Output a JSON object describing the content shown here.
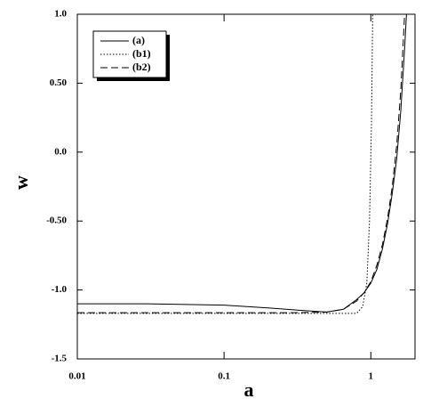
{
  "chart_data": {
    "type": "line",
    "x_label": "a",
    "y_label": "w",
    "log_x": true,
    "xlim": [
      0.01,
      2
    ],
    "xticks": [
      0.01,
      0.1,
      1
    ],
    "ylim": [
      -1.5,
      1.0
    ],
    "yticks": [
      {
        "value": -1.5,
        "label": "-1.5"
      },
      {
        "value": -1.0,
        "label": "-1.0"
      },
      {
        "value": -0.5,
        "label": "-0.50"
      },
      {
        "value": 0,
        "label": "0.0"
      },
      {
        "value": 0.5,
        "label": "0.50"
      },
      {
        "value": 1.0,
        "label": "1.0"
      }
    ],
    "legend": "upper left",
    "series": [
      {
        "name": "(a)",
        "color": "#000000",
        "dash": "solid",
        "x": [
          0.01,
          0.03,
          0.1,
          0.2,
          0.35,
          0.5,
          0.65,
          0.8,
          0.9,
          1.0,
          1.1,
          1.2,
          1.3,
          1.4,
          1.5,
          1.6,
          1.7,
          1.75
        ],
        "values": [
          -1.1,
          -1.1,
          -1.11,
          -1.13,
          -1.15,
          -1.16,
          -1.14,
          -1.07,
          -1.02,
          -0.95,
          -0.85,
          -0.7,
          -0.52,
          -0.3,
          -0.05,
          0.3,
          0.75,
          1.0
        ]
      },
      {
        "name": "(b1)",
        "color": "#000000",
        "dash": "dotted",
        "x": [
          0.01,
          0.1,
          0.5,
          0.8,
          0.88,
          0.94,
          0.98,
          1.01,
          1.03
        ],
        "values": [
          -1.17,
          -1.17,
          -1.17,
          -1.17,
          -1.12,
          -0.95,
          -0.5,
          0.2,
          1.0
        ]
      },
      {
        "name": "(b2)",
        "color": "#000000",
        "dash": "dashed",
        "x": [
          0.01,
          0.1,
          0.3,
          0.5,
          0.65,
          0.8,
          0.9,
          1.0,
          1.1,
          1.2,
          1.3,
          1.4,
          1.5,
          1.6,
          1.7
        ],
        "values": [
          -1.165,
          -1.165,
          -1.165,
          -1.16,
          -1.14,
          -1.08,
          -1.02,
          -0.94,
          -0.82,
          -0.67,
          -0.48,
          -0.25,
          0.05,
          0.45,
          1.0
        ]
      }
    ]
  }
}
